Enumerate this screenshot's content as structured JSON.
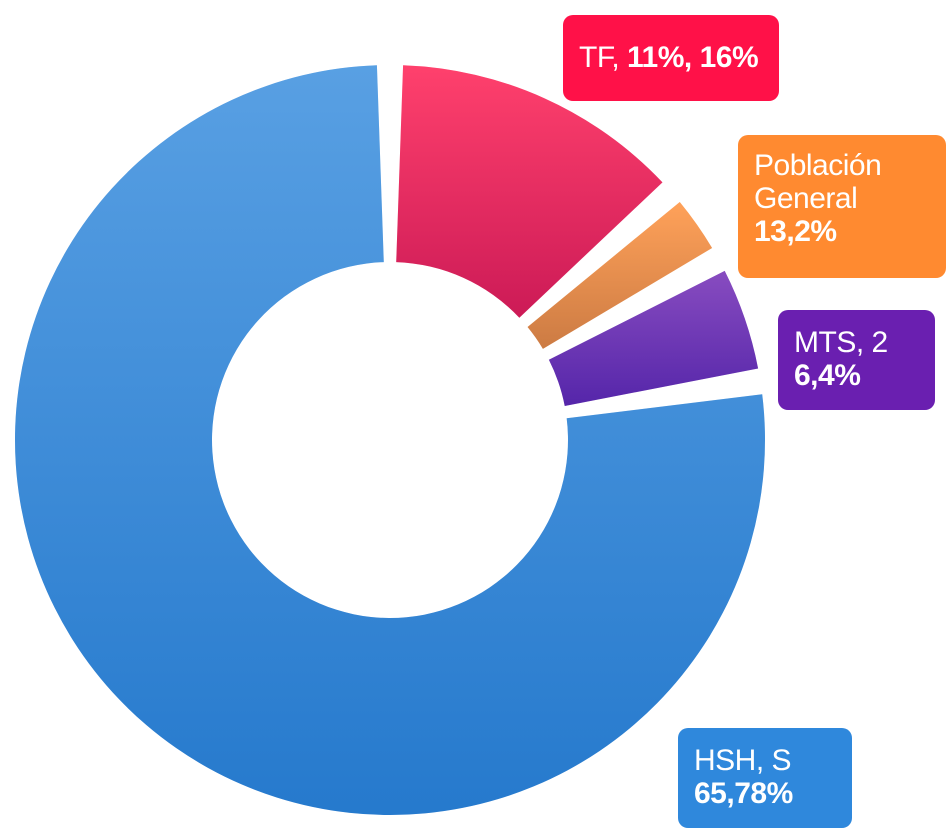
{
  "chart_data": {
    "type": "donut",
    "values": [
      13.5,
      3.5,
      5.5,
      77.5
    ],
    "colors": [
      "#ff1148",
      "#ff8a30",
      "#6a1fb0",
      "#2f88dc"
    ],
    "labels": [
      {
        "text": "TF,",
        "bold": "11%, 16%"
      },
      {
        "text": "Población General",
        "bold": "13,2%"
      },
      {
        "text": "MTS, 2",
        "bold": "6,4%"
      },
      {
        "text": "HSH, S",
        "bold": "65,78%"
      }
    ]
  }
}
